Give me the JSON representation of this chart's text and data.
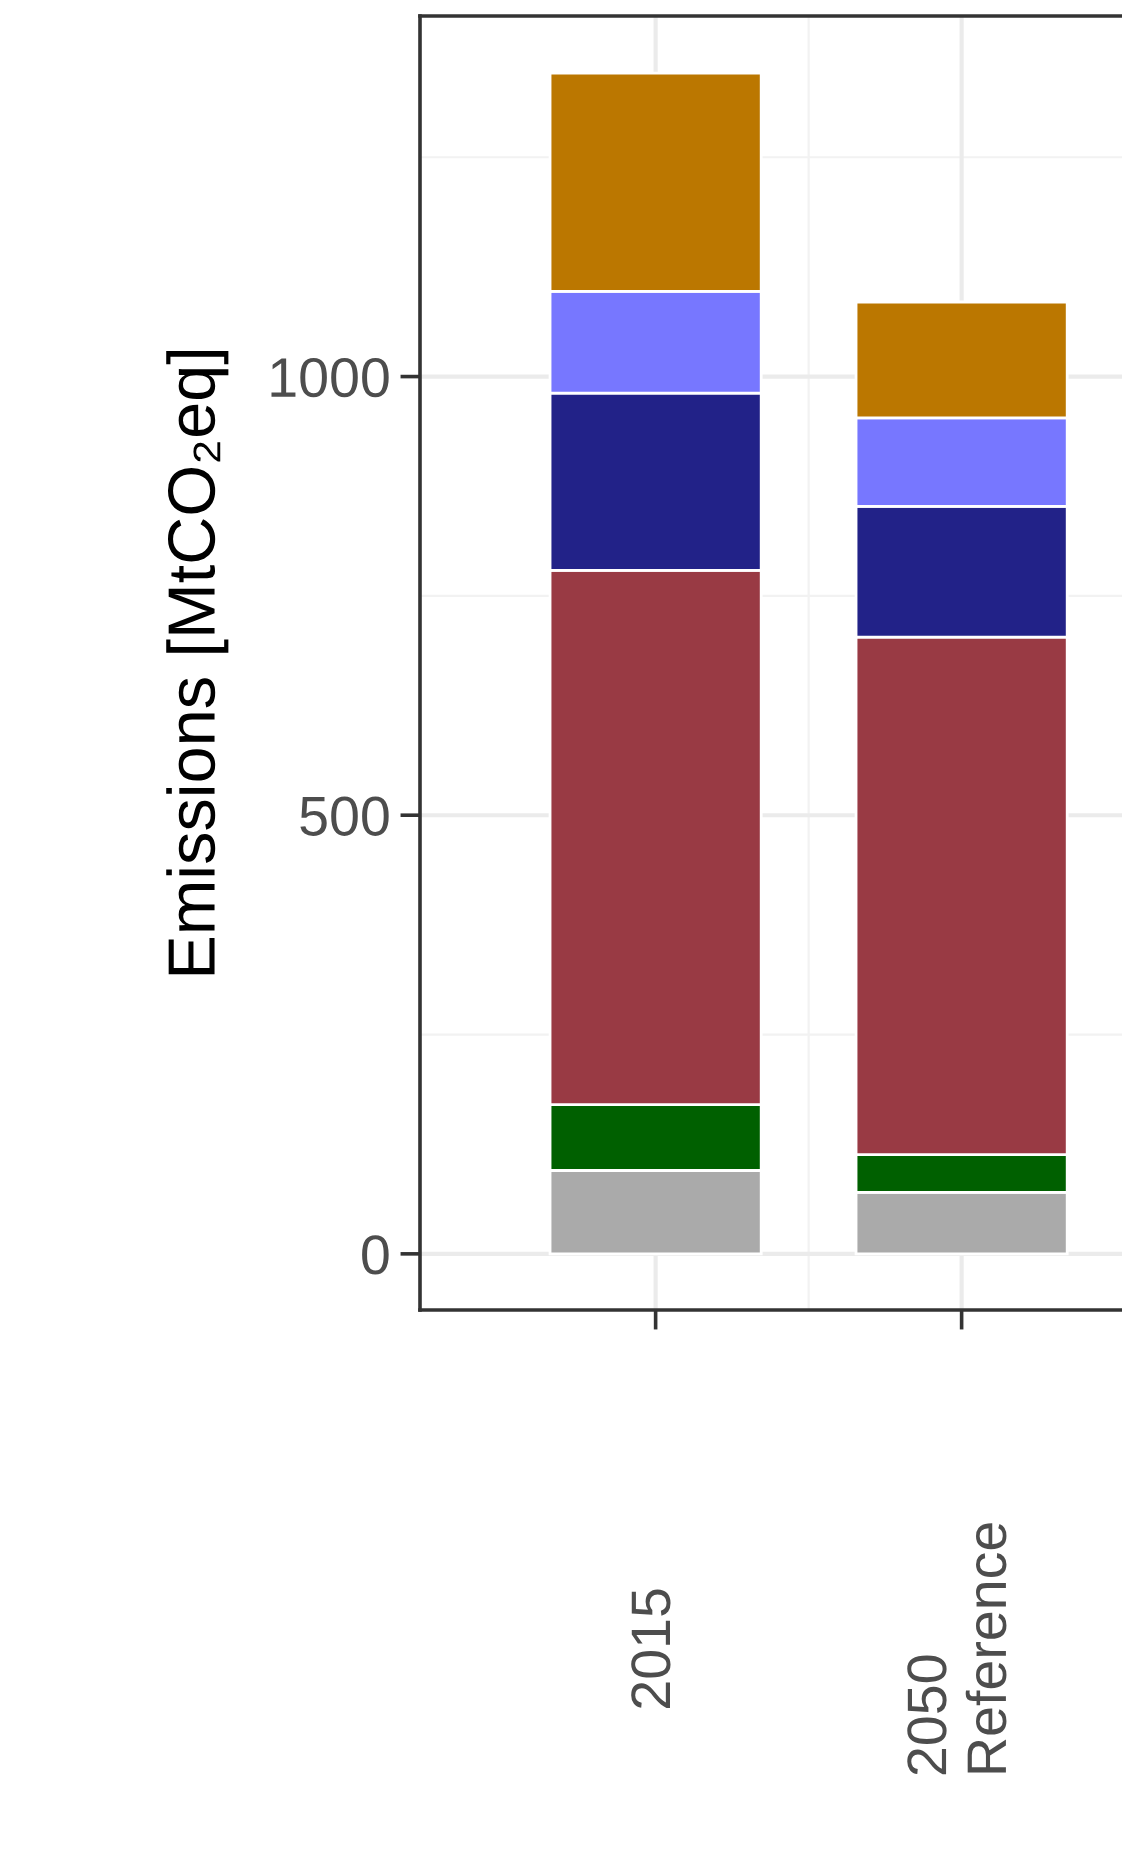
{
  "chart_data": {
    "type": "bar",
    "stacked": true,
    "ylabel": "Emissions [MtCO₂eq]",
    "categories": [
      "2015",
      "2050\nReference"
    ],
    "series": [
      {
        "color": "#aaaaaa",
        "values": [
          95,
          70
        ]
      },
      {
        "color": "#006000",
        "values": [
          75,
          43
        ]
      },
      {
        "color": "#993a44",
        "values": [
          609,
          590
        ]
      },
      {
        "color": "#222288",
        "values": [
          202,
          149
        ]
      },
      {
        "color": "#7777ff",
        "values": [
          116,
          101
        ]
      },
      {
        "color": "#bb7700",
        "values": [
          249,
          132
        ]
      }
    ],
    "ylim": [
      -64,
      1411
    ],
    "yticks": [
      0,
      500,
      1000
    ],
    "grid": true
  }
}
